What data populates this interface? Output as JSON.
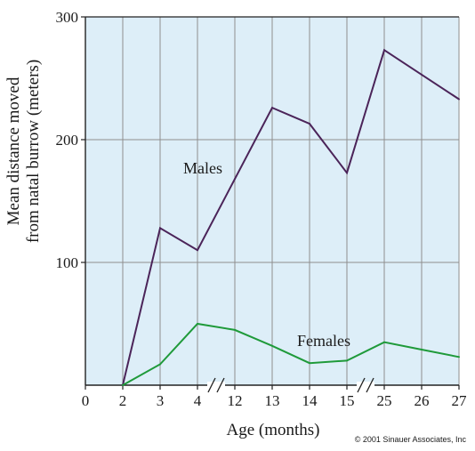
{
  "chart_data": {
    "type": "line",
    "categories": [
      "0",
      "2",
      "3",
      "4",
      "12",
      "13",
      "14",
      "15",
      "25",
      "26",
      "27"
    ],
    "xlabel": "Age (months)",
    "ylabel_lines": [
      "Mean distance moved",
      "from natal burrow (meters)"
    ],
    "ylim": [
      0,
      300
    ],
    "y_ticks": [
      100,
      200,
      300
    ],
    "axis_breaks_after": [
      "4",
      "15"
    ],
    "grid": true,
    "series": [
      {
        "name": "Males",
        "color": "#4b2459",
        "points": [
          {
            "x": "2",
            "y": 0
          },
          {
            "x": "3",
            "y": 128
          },
          {
            "x": "4",
            "y": 110
          },
          {
            "x": "12",
            "y": 168
          },
          {
            "x": "13",
            "y": 226
          },
          {
            "x": "14",
            "y": 213
          },
          {
            "x": "15",
            "y": 173
          },
          {
            "x": "25",
            "y": 273
          },
          {
            "x": "26",
            "y": 253
          },
          {
            "x": "27",
            "y": 233
          }
        ]
      },
      {
        "name": "Females",
        "color": "#1f9a3a",
        "points": [
          {
            "x": "2",
            "y": 0
          },
          {
            "x": "3",
            "y": 17
          },
          {
            "x": "4",
            "y": 50
          },
          {
            "x": "12",
            "y": 45
          },
          {
            "x": "13",
            "y": 32
          },
          {
            "x": "14",
            "y": 18
          },
          {
            "x": "15",
            "y": 20
          },
          {
            "x": "25",
            "y": 35
          },
          {
            "x": "26",
            "y": 29
          },
          {
            "x": "27",
            "y": 23
          }
        ]
      }
    ]
  },
  "colors": {
    "plot_background": "#ddeef8",
    "grid": "#8e8e8e",
    "axis": "#222222"
  },
  "copyright": "© 2001 Sinauer Associates, Inc"
}
